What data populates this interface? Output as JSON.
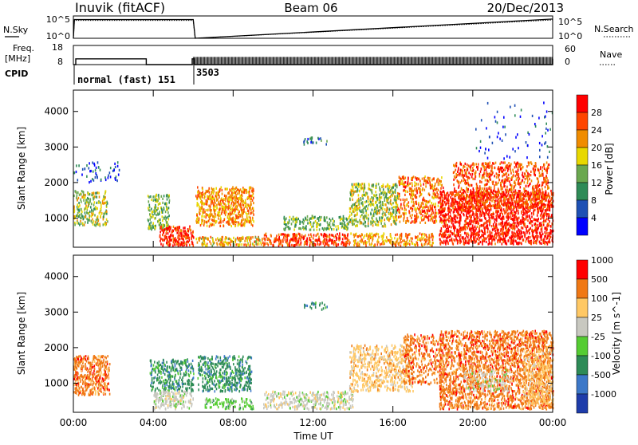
{
  "header": {
    "station": "Inuvik (fitACF)",
    "beam": "Beam 06",
    "date": "20/Dec/2013"
  },
  "chart_data": [
    {
      "type": "line",
      "panel": "noise",
      "left_label": "N.Sky",
      "right_label": "N.Search",
      "left_ticks": [
        "10^5",
        "10^0"
      ],
      "right_ticks": [
        "10^5",
        "10^0"
      ],
      "ylim_log10": [
        0,
        5
      ],
      "x_hours": [
        0.0,
        0.05,
        6.0,
        6.1,
        24.0
      ],
      "series": [
        {
          "values_log10": [
            0.0,
            4.2,
            4.2,
            0.0,
            4.3
          ],
          "style": "solid"
        },
        {
          "values_log10": [
            0.0,
            4.0,
            4.0,
            0.0,
            4.1
          ],
          "style": "dotted"
        }
      ]
    },
    {
      "type": "line",
      "panel": "frequency",
      "left_label_line1": "Freq.",
      "left_label_line2": "[MHz]",
      "right_label": "Nave",
      "left_ticks": [
        "18",
        "8"
      ],
      "right_ticks": [
        "60",
        "0"
      ],
      "ylim": [
        8,
        18
      ],
      "freq_x_hours": [
        0.0,
        0.12,
        3.55,
        3.65,
        5.95,
        6.0,
        6.05,
        24.0
      ],
      "freq_values": [
        8,
        11,
        11,
        8,
        11,
        11,
        8,
        11
      ],
      "nave_comb_start_hour": 6.0,
      "nave_comb_end_hour": 24.0,
      "nave_comb_min": 8,
      "nave_comb_max": 12
    },
    {
      "type": "table",
      "panel": "cpid",
      "label": "CPID",
      "segments": [
        {
          "start_hour": 0.0,
          "end_hour": 6.0,
          "text": "normal (fast) 151"
        },
        {
          "start_hour": 6.0,
          "end_hour": 24.0,
          "text": "3503"
        }
      ]
    },
    {
      "type": "heatmap",
      "panel": "power",
      "ylabel": "Slant Range [km]",
      "yticks": [
        1000,
        2000,
        3000,
        4000
      ],
      "ylim": [
        180,
        4600
      ],
      "colorbar_label": "Power [dB]",
      "colorbar_ticks": [
        4,
        8,
        12,
        16,
        20,
        24,
        28
      ],
      "colorbar_range": [
        0,
        32
      ],
      "colors": [
        "#0000ff",
        "#1e50b4",
        "#2e8b57",
        "#6aa84f",
        "#e8d800",
        "#f08c00",
        "#ff4500",
        "#ff0000"
      ],
      "regions": [
        {
          "x": [
            0.0,
            1.7
          ],
          "y": [
            800,
            1800
          ],
          "level": 3.5,
          "density": 0.5
        },
        {
          "x": [
            0.0,
            2.3
          ],
          "y": [
            2000,
            2600
          ],
          "level": 0.8,
          "density": 0.15
        },
        {
          "x": [
            3.7,
            4.8
          ],
          "y": [
            700,
            1700
          ],
          "level": 3.0,
          "density": 0.55
        },
        {
          "x": [
            4.3,
            6.0
          ],
          "y": [
            250,
            800
          ],
          "level": 6.5,
          "density": 0.8
        },
        {
          "x": [
            6.1,
            9.0
          ],
          "y": [
            800,
            1900
          ],
          "level": 5.0,
          "density": 0.7
        },
        {
          "x": [
            6.1,
            9.5
          ],
          "y": [
            250,
            500
          ],
          "level": 4.5,
          "density": 0.7
        },
        {
          "x": [
            9.5,
            13.8
          ],
          "y": [
            250,
            600
          ],
          "level": 6.3,
          "density": 0.75
        },
        {
          "x": [
            10.5,
            13.8
          ],
          "y": [
            700,
            1100
          ],
          "level": 3.0,
          "density": 0.5
        },
        {
          "x": [
            11.5,
            12.7
          ],
          "y": [
            3100,
            3300
          ],
          "level": 1.5,
          "density": 0.35
        },
        {
          "x": [
            13.8,
            16.2
          ],
          "y": [
            800,
            2000
          ],
          "level": 3.5,
          "density": 0.6
        },
        {
          "x": [
            13.8,
            18.0
          ],
          "y": [
            250,
            600
          ],
          "level": 5.0,
          "density": 0.55
        },
        {
          "x": [
            16.2,
            18.5
          ],
          "y": [
            900,
            2200
          ],
          "level": 5.5,
          "density": 0.5
        },
        {
          "x": [
            18.3,
            24.0
          ],
          "y": [
            300,
            1800
          ],
          "level": 6.8,
          "density": 0.75
        },
        {
          "x": [
            19.0,
            23.8
          ],
          "y": [
            1300,
            2600
          ],
          "level": 6.0,
          "density": 0.5
        },
        {
          "x": [
            20.0,
            24.0
          ],
          "y": [
            2700,
            4300
          ],
          "level": 0.6,
          "density": 0.04
        }
      ]
    },
    {
      "type": "heatmap",
      "panel": "velocity",
      "ylabel": "Slant Range [km]",
      "xlabel": "Time UT",
      "yticks": [
        1000,
        2000,
        3000,
        4000
      ],
      "ylim": [
        180,
        4600
      ],
      "xticks": [
        "00:00",
        "04:00",
        "08:00",
        "12:00",
        "16:00",
        "20:00",
        "00:00"
      ],
      "xtick_hours": [
        0,
        4,
        8,
        12,
        16,
        20,
        24
      ],
      "colorbar_label": "Velocity [m s^-1]",
      "colorbar_ticks": [
        "1000",
        "500",
        "100",
        "25",
        "-25",
        "-100",
        "-500",
        "-1000"
      ],
      "colors": [
        "#1e3caa",
        "#3c78c8",
        "#2e8b57",
        "#55cc33",
        "#c8c8c0",
        "#ffc864",
        "#f07814",
        "#ff0000"
      ],
      "regions": [
        {
          "x": [
            0.0,
            1.8
          ],
          "y": [
            700,
            1800
          ],
          "level": 6,
          "density": 0.75
        },
        {
          "x": [
            3.8,
            6.0
          ],
          "y": [
            800,
            1700
          ],
          "level": 2,
          "density": 0.55
        },
        {
          "x": [
            4.0,
            6.0
          ],
          "y": [
            300,
            800
          ],
          "level": 4,
          "density": 0.7
        },
        {
          "x": [
            6.2,
            8.9
          ],
          "y": [
            800,
            1800
          ],
          "level": 2,
          "density": 0.6
        },
        {
          "x": [
            6.5,
            9.0
          ],
          "y": [
            300,
            600
          ],
          "level": 3,
          "density": 0.5
        },
        {
          "x": [
            9.5,
            14.0
          ],
          "y": [
            300,
            800
          ],
          "level": 4,
          "density": 0.55
        },
        {
          "x": [
            11.5,
            12.7
          ],
          "y": [
            3100,
            3300
          ],
          "level": 2,
          "density": 0.35
        },
        {
          "x": [
            13.8,
            17.0
          ],
          "y": [
            800,
            2100
          ],
          "level": 5,
          "density": 0.55
        },
        {
          "x": [
            16.5,
            18.5
          ],
          "y": [
            1000,
            2400
          ],
          "level": 6,
          "density": 0.45
        },
        {
          "x": [
            18.3,
            24.0
          ],
          "y": [
            300,
            2500
          ],
          "level": 6,
          "density": 0.7
        },
        {
          "x": [
            19.5,
            22.0
          ],
          "y": [
            800,
            1400
          ],
          "level": 4,
          "density": 0.35
        },
        {
          "x": [
            22.5,
            24.0
          ],
          "y": [
            400,
            2000
          ],
          "level": 5,
          "density": 0.5
        }
      ]
    }
  ]
}
